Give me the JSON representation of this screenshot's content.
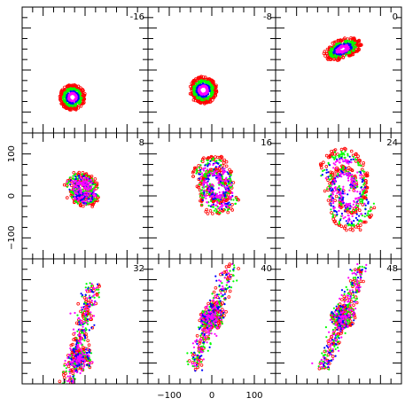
{
  "chart_data": {
    "type": "scatter",
    "grid": false,
    "colors": {
      "red": "#ff0000",
      "green": "#00ff00",
      "blue": "#0000ff",
      "magenta": "#ff00ff",
      "axis": "#000000"
    },
    "xlim": [
      -150,
      150
    ],
    "ylim": [
      -150,
      150
    ],
    "x_ticks": [
      -100,
      0,
      100
    ],
    "y_ticks": [
      -100,
      0,
      100
    ],
    "x_tick_labels": [
      "−100",
      "0",
      "100"
    ],
    "y_tick_labels": [
      "−100",
      "0",
      "100"
    ],
    "panels": [
      {
        "label": "-16",
        "shape": "ring",
        "cx": -30,
        "cy": -65,
        "rx": 28,
        "ry": 28
      },
      {
        "label": "-8",
        "shape": "ring",
        "cx": -20,
        "cy": -48,
        "rx": 30,
        "ry": 30
      },
      {
        "label": "0",
        "shape": "tilted-disk",
        "cx": 10,
        "cy": 50,
        "rx": 45,
        "ry": 22
      },
      {
        "label": "8",
        "shape": "spiral",
        "cx": -5,
        "cy": 15,
        "rx": 45,
        "ry": 45
      },
      {
        "label": "16",
        "shape": "spiral",
        "cx": 10,
        "cy": 25,
        "rx": 60,
        "ry": 85
      },
      {
        "label": "24",
        "shape": "spiral",
        "cx": 20,
        "cy": 15,
        "rx": 75,
        "ry": 120
      },
      {
        "label": "32",
        "shape": "merger",
        "cx": -10,
        "cy": -30,
        "rx": 50,
        "ry": 150
      },
      {
        "label": "40",
        "shape": "merger",
        "cx": 0,
        "cy": 10,
        "rx": 70,
        "ry": 150
      },
      {
        "label": "48",
        "shape": "merger",
        "cx": 10,
        "cy": 10,
        "rx": 75,
        "ry": 150
      }
    ]
  }
}
